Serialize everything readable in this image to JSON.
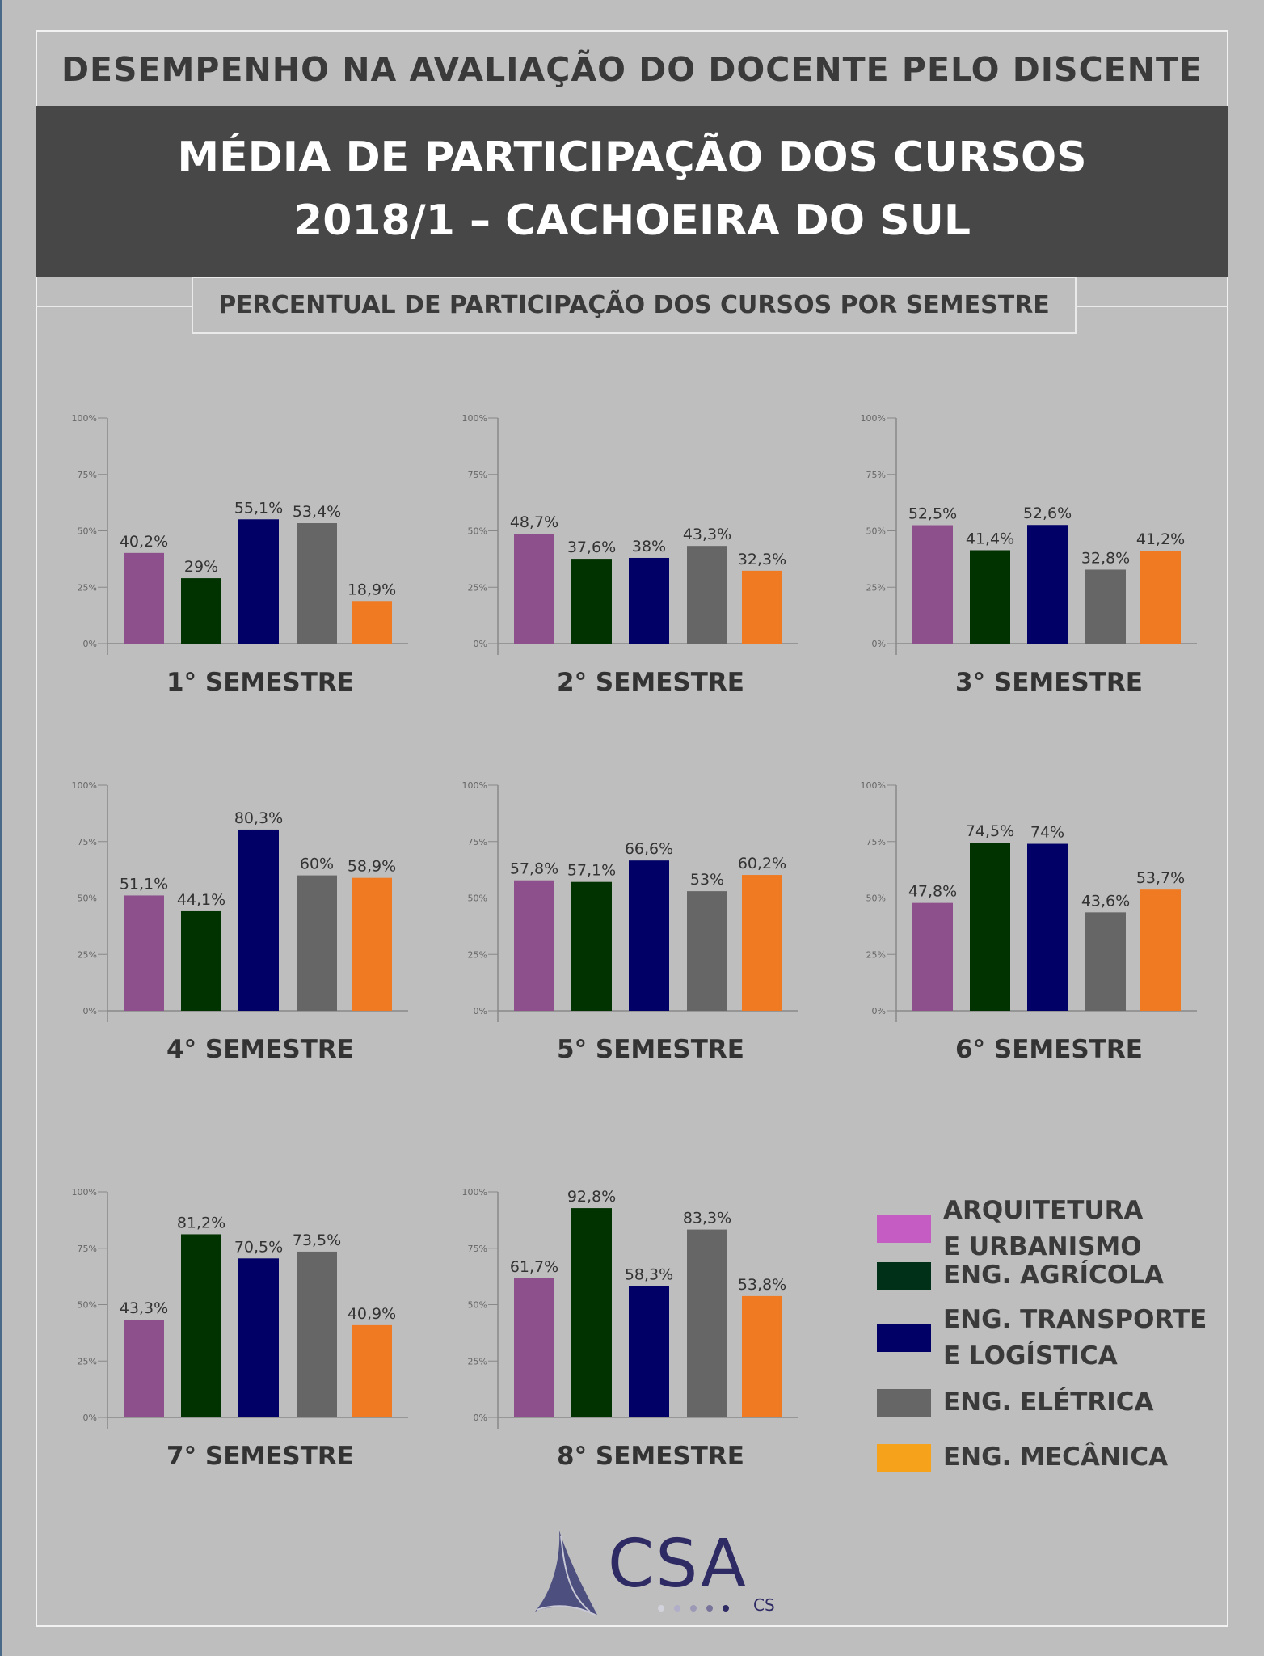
{
  "header": {
    "top_title": "DESEMPENHO NA AVALIAÇÃO DO DOCENTE PELO DISCENTE",
    "title_line1": "MÉDIA DE PARTICIPAÇÃO DOS CURSOS",
    "title_line2": "2018/1 – CACHOEIRA DO SUL",
    "subtitle": "PERCENTUAL DE PARTICIPAÇÃO DOS CURSOS POR SEMESTRE"
  },
  "legend": [
    {
      "label_line1": "ARQUITETURA",
      "label_line2": "E URBANISMO",
      "color": "#c45cc4"
    },
    {
      "label_line1": "ENG. AGRÍCOLA",
      "label_line2": "",
      "color": "#003018"
    },
    {
      "label_line1": "ENG. TRANSPORTE",
      "label_line2": "E LOGÍSTICA",
      "color": "#000066"
    },
    {
      "label_line1": "ENG. ELÉTRICA",
      "label_line2": "",
      "color": "#666666"
    },
    {
      "label_line1": "ENG. MECÂNICA",
      "label_line2": "",
      "color": "#f7a21b"
    }
  ],
  "logo": {
    "text": "CSA",
    "subtext": "CS",
    "color": "#2e2a63"
  },
  "chart_data": [
    {
      "type": "bar",
      "title": "1° SEMESTRE",
      "categories": [
        "ARQUITETURA E URBANISMO",
        "ENG. AGRÍCOLA",
        "ENG. TRANSPORTE E LOGÍSTICA",
        "ENG. ELÉTRICA",
        "ENG. MECÂNICA"
      ],
      "values": [
        40.2,
        29,
        55.1,
        53.4,
        18.9
      ],
      "labels": [
        "40,2%",
        "29%",
        "55,1%",
        "53,4%",
        "18,9%"
      ],
      "ylim": [
        0,
        100
      ],
      "yticks": [
        "0%",
        "25%",
        "50%",
        "75%",
        "100%"
      ]
    },
    {
      "type": "bar",
      "title": "2° SEMESTRE",
      "categories": [
        "ARQUITETURA E URBANISMO",
        "ENG. AGRÍCOLA",
        "ENG. TRANSPORTE E LOGÍSTICA",
        "ENG. ELÉTRICA",
        "ENG. MECÂNICA"
      ],
      "values": [
        48.7,
        37.6,
        38,
        43.3,
        32.3
      ],
      "labels": [
        "48,7%",
        "37,6%",
        "38%",
        "43,3%",
        "32,3%"
      ],
      "ylim": [
        0,
        100
      ],
      "yticks": [
        "0%",
        "25%",
        "50%",
        "75%",
        "100%"
      ]
    },
    {
      "type": "bar",
      "title": "3° SEMESTRE",
      "categories": [
        "ARQUITETURA E URBANISMO",
        "ENG. AGRÍCOLA",
        "ENG. TRANSPORTE E LOGÍSTICA",
        "ENG. ELÉTRICA",
        "ENG. MECÂNICA"
      ],
      "values": [
        52.5,
        41.4,
        52.6,
        32.8,
        41.2
      ],
      "labels": [
        "52,5%",
        "41,4%",
        "52,6%",
        "32,8%",
        "41,2%"
      ],
      "ylim": [
        0,
        100
      ],
      "yticks": [
        "0%",
        "25%",
        "50%",
        "75%",
        "100%"
      ]
    },
    {
      "type": "bar",
      "title": "4° SEMESTRE",
      "categories": [
        "ARQUITETURA E URBANISMO",
        "ENG. AGRÍCOLA",
        "ENG. TRANSPORTE E LOGÍSTICA",
        "ENG. ELÉTRICA",
        "ENG. MECÂNICA"
      ],
      "values": [
        51.1,
        44.1,
        80.3,
        60,
        58.9
      ],
      "labels": [
        "51,1%",
        "44,1%",
        "80,3%",
        "60%",
        "58,9%"
      ],
      "ylim": [
        0,
        100
      ],
      "yticks": [
        "0%",
        "25%",
        "50%",
        "75%",
        "100%"
      ]
    },
    {
      "type": "bar",
      "title": "5° SEMESTRE",
      "categories": [
        "ARQUITETURA E URBANISMO",
        "ENG. AGRÍCOLA",
        "ENG. TRANSPORTE E LOGÍSTICA",
        "ENG. ELÉTRICA",
        "ENG. MECÂNICA"
      ],
      "values": [
        57.8,
        57.1,
        66.6,
        53,
        60.2
      ],
      "labels": [
        "57,8%",
        "57,1%",
        "66,6%",
        "53%",
        "60,2%"
      ],
      "ylim": [
        0,
        100
      ],
      "yticks": [
        "0%",
        "25%",
        "50%",
        "75%",
        "100%"
      ]
    },
    {
      "type": "bar",
      "title": "6° SEMESTRE",
      "categories": [
        "ARQUITETURA E URBANISMO",
        "ENG. AGRÍCOLA",
        "ENG. TRANSPORTE E LOGÍSTICA",
        "ENG. ELÉTRICA",
        "ENG. MECÂNICA"
      ],
      "values": [
        47.8,
        74.5,
        74,
        43.6,
        53.7
      ],
      "labels": [
        "47,8%",
        "74,5%",
        "74%",
        "43,6%",
        "53,7%"
      ],
      "ylim": [
        0,
        100
      ],
      "yticks": [
        "0%",
        "25%",
        "50%",
        "75%",
        "100%"
      ]
    },
    {
      "type": "bar",
      "title": "7° SEMESTRE",
      "categories": [
        "ARQUITETURA E URBANISMO",
        "ENG. AGRÍCOLA",
        "ENG. TRANSPORTE E LOGÍSTICA",
        "ENG. ELÉTRICA",
        "ENG. MECÂNICA"
      ],
      "values": [
        43.3,
        81.2,
        70.5,
        73.5,
        40.9
      ],
      "labels": [
        "43,3%",
        "81,2%",
        "70,5%",
        "73,5%",
        "40,9%"
      ],
      "ylim": [
        0,
        100
      ],
      "yticks": [
        "0%",
        "25%",
        "50%",
        "75%",
        "100%"
      ]
    },
    {
      "type": "bar",
      "title": "8° SEMESTRE",
      "categories": [
        "ARQUITETURA E URBANISMO",
        "ENG. AGRÍCOLA",
        "ENG. TRANSPORTE E LOGÍSTICA",
        "ENG. ELÉTRICA",
        "ENG. MECÂNICA"
      ],
      "values": [
        61.7,
        92.8,
        58.3,
        83.3,
        53.8
      ],
      "labels": [
        "61,7%",
        "92,8%",
        "58,3%",
        "83,3%",
        "53,8%"
      ],
      "ylim": [
        0,
        100
      ],
      "yticks": [
        "0%",
        "25%",
        "50%",
        "75%",
        "100%"
      ]
    }
  ],
  "bar_colors": [
    "#8e508c",
    "#003300",
    "#000066",
    "#666666",
    "#f07a22"
  ]
}
